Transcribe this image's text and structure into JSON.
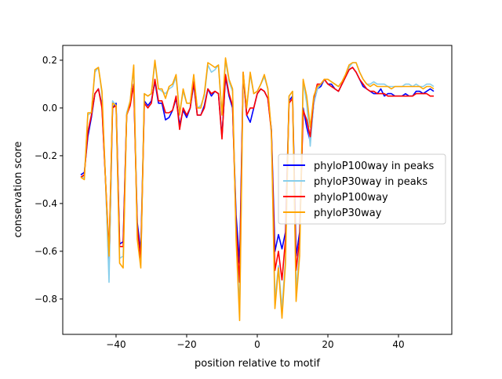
{
  "chart_data": {
    "type": "line",
    "title": "",
    "xlabel": "position relative to motif",
    "ylabel": "conservation score",
    "xlim": [
      -55.1,
      55.1
    ],
    "ylim": [
      -0.948,
      0.262
    ],
    "xticks": [
      -40,
      -20,
      0,
      20,
      40
    ],
    "yticks": [
      0.2,
      0.0,
      -0.2,
      -0.4,
      -0.6,
      -0.8
    ],
    "xtick_labels": [
      "−40",
      "−20",
      "0",
      "20",
      "40"
    ],
    "ytick_labels": [
      "0.2",
      "0.0",
      "−0.2",
      "−0.4",
      "−0.6",
      "−0.8"
    ],
    "grid": false,
    "legend_position": "center-right",
    "x_start": -50,
    "x_step": 1,
    "series": [
      {
        "name": "phyloP100way in peaks",
        "color": "#0000ff",
        "values": [
          -0.28,
          -0.27,
          -0.12,
          -0.04,
          0.06,
          0.08,
          0.01,
          -0.3,
          -0.68,
          0.0,
          0.02,
          -0.57,
          -0.56,
          -0.03,
          0.02,
          0.1,
          -0.48,
          -0.6,
          0.03,
          0.01,
          0.03,
          0.11,
          0.02,
          0.02,
          -0.05,
          -0.04,
          -0.01,
          0.04,
          -0.07,
          -0.01,
          -0.04,
          0.0,
          0.1,
          -0.03,
          -0.03,
          0.01,
          0.08,
          0.05,
          0.07,
          0.06,
          -0.12,
          0.13,
          0.05,
          0.0,
          -0.45,
          -0.65,
          0.14,
          -0.03,
          -0.06,
          0.0,
          0.06,
          0.08,
          0.07,
          0.04,
          -0.09,
          -0.6,
          -0.53,
          -0.59,
          -0.52,
          0.03,
          0.05,
          -0.62,
          -0.52,
          0.0,
          -0.08,
          -0.14,
          0.02,
          0.08,
          0.09,
          0.12,
          0.1,
          0.1,
          0.08,
          0.07,
          0.1,
          0.13,
          0.16,
          0.17,
          0.15,
          0.12,
          0.09,
          0.08,
          0.07,
          0.06,
          0.06,
          0.08,
          0.05,
          0.06,
          0.06,
          0.05,
          0.05,
          0.05,
          0.06,
          0.05,
          0.05,
          0.07,
          0.07,
          0.06,
          0.07,
          0.08,
          0.07
        ]
      },
      {
        "name": "phyloP30way in peaks",
        "color": "#87ceeb",
        "values": [
          -0.29,
          -0.29,
          -0.03,
          -0.02,
          0.15,
          0.17,
          0.06,
          -0.3,
          -0.73,
          0.03,
          0.01,
          -0.63,
          -0.62,
          -0.02,
          0.03,
          0.17,
          -0.53,
          -0.65,
          0.06,
          0.05,
          0.06,
          0.19,
          0.08,
          0.07,
          0.06,
          0.08,
          0.09,
          0.13,
          -0.02,
          0.07,
          0.02,
          0.02,
          0.13,
          0.0,
          0.01,
          0.05,
          0.18,
          0.15,
          0.16,
          0.18,
          -0.03,
          0.2,
          0.11,
          0.07,
          -0.53,
          -0.85,
          0.14,
          0.0,
          0.14,
          0.06,
          0.07,
          0.1,
          0.13,
          0.08,
          -0.11,
          -0.8,
          -0.66,
          -0.84,
          -0.63,
          0.05,
          0.07,
          -0.76,
          -0.6,
          0.11,
          0.02,
          -0.16,
          0.02,
          0.08,
          0.1,
          0.12,
          0.12,
          0.11,
          0.1,
          0.09,
          0.11,
          0.14,
          0.17,
          0.19,
          0.19,
          0.15,
          0.12,
          0.1,
          0.1,
          0.11,
          0.1,
          0.1,
          0.1,
          0.09,
          0.09,
          0.09,
          0.09,
          0.09,
          0.1,
          0.1,
          0.09,
          0.1,
          0.09,
          0.09,
          0.1,
          0.1,
          0.09
        ]
      },
      {
        "name": "phyloP100way",
        "color": "#ff0000",
        "values": [
          -0.29,
          -0.28,
          -0.1,
          -0.03,
          0.06,
          0.08,
          0.0,
          -0.3,
          -0.6,
          0.0,
          0.01,
          -0.58,
          -0.58,
          -0.03,
          0.01,
          0.1,
          -0.5,
          -0.63,
          0.02,
          0.0,
          0.02,
          0.12,
          0.03,
          0.03,
          -0.02,
          -0.02,
          -0.01,
          0.05,
          -0.09,
          0.0,
          -0.03,
          0.0,
          0.11,
          -0.03,
          -0.03,
          0.0,
          0.08,
          0.06,
          0.07,
          0.06,
          -0.13,
          0.14,
          0.06,
          0.01,
          -0.5,
          -0.73,
          0.15,
          -0.03,
          0.0,
          0.0,
          0.06,
          0.08,
          0.07,
          0.04,
          -0.1,
          -0.68,
          -0.6,
          -0.72,
          -0.55,
          0.02,
          0.04,
          -0.68,
          -0.55,
          -0.01,
          -0.05,
          -0.12,
          0.04,
          0.1,
          0.1,
          0.12,
          0.1,
          0.09,
          0.08,
          0.07,
          0.1,
          0.13,
          0.16,
          0.17,
          0.15,
          0.12,
          0.1,
          0.08,
          0.07,
          0.07,
          0.06,
          0.06,
          0.06,
          0.05,
          0.05,
          0.05,
          0.05,
          0.05,
          0.05,
          0.05,
          0.05,
          0.06,
          0.06,
          0.06,
          0.06,
          0.05,
          0.05
        ]
      },
      {
        "name": "phyloP30way",
        "color": "#ffa500",
        "values": [
          -0.29,
          -0.3,
          -0.02,
          -0.02,
          0.16,
          0.17,
          0.07,
          -0.3,
          -0.62,
          0.02,
          0.01,
          -0.65,
          -0.67,
          -0.03,
          0.03,
          0.18,
          -0.55,
          -0.67,
          0.06,
          0.05,
          0.06,
          0.2,
          0.08,
          0.08,
          0.04,
          0.09,
          0.1,
          0.14,
          -0.03,
          0.08,
          0.02,
          0.02,
          0.14,
          0.0,
          0.0,
          0.06,
          0.19,
          0.18,
          0.17,
          0.18,
          -0.03,
          0.21,
          0.12,
          0.08,
          -0.55,
          -0.89,
          0.15,
          0.0,
          0.15,
          0.06,
          0.07,
          0.1,
          0.14,
          0.08,
          -0.1,
          -0.84,
          -0.67,
          -0.88,
          -0.65,
          0.05,
          0.07,
          -0.81,
          -0.62,
          0.12,
          0.05,
          -0.08,
          0.05,
          0.09,
          0.1,
          0.12,
          0.12,
          0.11,
          0.1,
          0.09,
          0.11,
          0.14,
          0.18,
          0.19,
          0.19,
          0.15,
          0.12,
          0.1,
          0.09,
          0.1,
          0.09,
          0.09,
          0.09,
          0.09,
          0.08,
          0.09,
          0.09,
          0.09,
          0.09,
          0.09,
          0.09,
          0.09,
          0.09,
          0.08,
          0.09,
          0.09,
          0.08
        ]
      }
    ]
  }
}
